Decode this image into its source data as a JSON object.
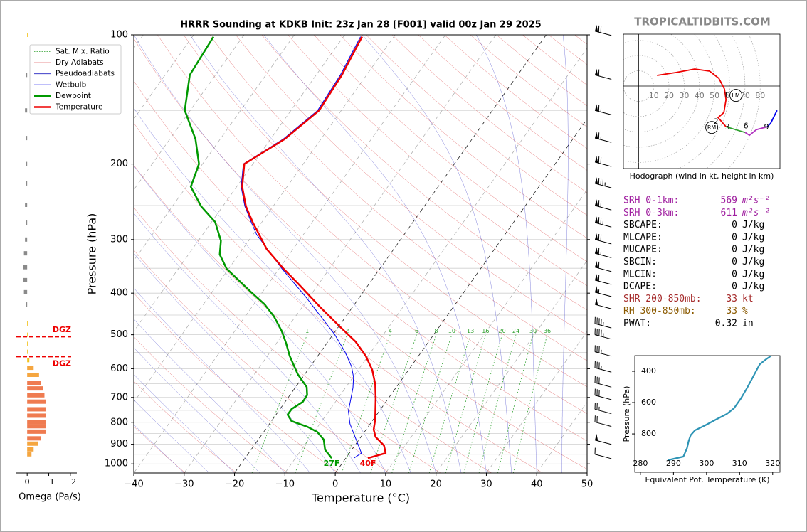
{
  "site": "TROPICALTIDBITS.COM",
  "chart_data": [
    {
      "type": "skewt",
      "title": "HRRR Sounding at KDKB Init: 23z Jan 28 [F001] valid 00z Jan 29 2025",
      "x_label": "Temperature (°C)",
      "y_label": "Pressure (hPa)",
      "xlim": [
        -40,
        50
      ],
      "xticks": [
        {
          "value": -40,
          "label": "−40"
        },
        {
          "value": -30,
          "label": "−30"
        },
        {
          "value": -20,
          "label": "−20"
        },
        {
          "value": -10,
          "label": "−10"
        },
        0,
        10,
        20,
        30,
        40,
        50
      ],
      "ylim": [
        1050,
        100
      ],
      "log_scale": true,
      "yticks": [
        100,
        200,
        300,
        400,
        500,
        600,
        700,
        800,
        900,
        1000
      ],
      "minor_yticks": [
        150,
        250,
        350,
        450,
        550,
        650,
        750,
        850,
        950
      ],
      "legend": "upper left",
      "reference_lines": [
        {
          "name": "Sat. Mix. Ratio",
          "color": "#2ca02c"
        },
        {
          "name": "Dry Adiabats",
          "color": "#d62728"
        },
        {
          "name": "Pseudoadiabats",
          "color": "#2020c0"
        }
      ],
      "mixing_ratios": [
        1,
        2,
        4,
        6,
        8,
        10,
        13,
        16,
        20,
        24,
        30,
        36
      ],
      "series": [
        {
          "name": "Wetbulb",
          "color": "#0000ee",
          "linewidth": 1,
          "pressure": [
            970,
            944,
            875,
            807,
            754,
            665,
            628,
            593,
            549,
            499,
            445,
            409,
            351,
            292,
            274,
            251,
            226,
            200,
            175,
            150,
            124,
            101
          ],
          "values": [
            1.6,
            2.4,
            -0.7,
            -4.0,
            -6.1,
            -8.5,
            -9.9,
            -11.8,
            -15.1,
            -19.7,
            -26.0,
            -30.6,
            -39.4,
            -49.3,
            -52.0,
            -55.6,
            -59.1,
            -61.9,
            -57.5,
            -54.7,
            -55.2,
            -56.6
          ]
        },
        {
          "name": "Dewpoint",
          "color": "#009900",
          "linewidth": 2.5,
          "surface_label": "27F",
          "pressure": [
            970,
            927,
            878,
            842,
            820,
            795,
            768,
            745,
            717,
            691,
            662,
            618,
            560,
            523,
            490,
            454,
            425,
            397,
            351,
            325,
            302,
            273,
            251,
            226,
            200,
            175,
            150,
            124,
            101
          ],
          "values": [
            -2.8,
            -5.3,
            -7.0,
            -9.4,
            -12.0,
            -16.0,
            -17.7,
            -17.7,
            -16.5,
            -16.6,
            -17.8,
            -21.4,
            -25.6,
            -28.1,
            -30.7,
            -34.2,
            -37.8,
            -42.4,
            -50.4,
            -53.8,
            -55.5,
            -59.3,
            -64.3,
            -69.1,
            -70.7,
            -74.9,
            -81.1,
            -85.1,
            -85.8
          ]
        },
        {
          "name": "Temperature",
          "color": "#ee0000",
          "linewidth": 2.5,
          "surface_label": "40F",
          "pressure": [
            970,
            944,
            906,
            865,
            832,
            789,
            704,
            652,
            604,
            560,
            519,
            480,
            432,
            382,
            351,
            316,
            274,
            251,
            226,
            200,
            175,
            150,
            124,
            101
          ],
          "values": [
            4.4,
            7.2,
            5.8,
            2.9,
            1.5,
            0.4,
            -2.5,
            -4.6,
            -7.2,
            -10.5,
            -14.5,
            -19.6,
            -26.3,
            -33.8,
            -39.1,
            -45.2,
            -51.7,
            -55.4,
            -58.9,
            -61.7,
            -57.2,
            -54.4,
            -54.9,
            -56.3
          ]
        }
      ],
      "wind_barbs": {
        "pressure": [
          98,
          124,
          150,
          174,
          198,
          222,
          250,
          274,
          300,
          323,
          348,
          373,
          398,
          425,
          471,
          500,
          548,
          597,
          647,
          692,
          746,
          799,
          880,
          950
        ],
        "speed": [
          70,
          60,
          65,
          65,
          70,
          85,
          70,
          75,
          70,
          65,
          60,
          60,
          55,
          50,
          45,
          45,
          35,
          35,
          30,
          30,
          25,
          20,
          50,
          10
        ]
      }
    },
    {
      "type": "hodograph",
      "title": "Hodograph (wind in kt, height in km)",
      "xlim": [
        -10,
        93
      ],
      "ylim": [
        -54,
        34
      ],
      "rings": [
        10,
        20,
        30,
        40,
        50,
        60,
        70,
        80
      ],
      "series": [
        {
          "color": "#ee0000",
          "u": [
            12.1,
            24.8,
            36.9,
            46.7,
            52.8,
            56.5,
            57.5,
            56.1,
            52.3,
            57.5
          ],
          "v": [
            7.0,
            8.9,
            11.2,
            9.8,
            5.1,
            -1.9,
            -8.9,
            -17.3,
            -20.6,
            -26.6
          ]
        },
        {
          "color": "#2ca02c",
          "u": [
            57.5,
            70.1
          ],
          "v": [
            -26.6,
            -30.4
          ]
        },
        {
          "color": "#b030c0",
          "u": [
            70.1,
            72.9,
            77.6,
            84.6
          ],
          "v": [
            -30.4,
            -32.2,
            -28.5,
            -26.6
          ]
        },
        {
          "color": "#0000ee",
          "u": [
            84.6,
            86.9,
            91.1
          ],
          "v": [
            -26.6,
            -24.3,
            -15.9
          ]
        }
      ],
      "height_labels": [
        {
          "label": "1",
          "u": 57.5,
          "v": -6.1
        },
        {
          "label": "2",
          "u": 50.9,
          "v": -23.4
        },
        {
          "label": "3",
          "u": 58.4,
          "v": -27.1
        },
        {
          "label": "6",
          "u": 70.6,
          "v": -26.2
        },
        {
          "label": "9",
          "u": 84.1,
          "v": -27.1
        }
      ],
      "storm_motion": [
        {
          "label": "RM",
          "u": 48.1,
          "v": -27.1
        },
        {
          "label": "LM",
          "u": 64.0,
          "v": -6.1
        }
      ]
    },
    {
      "type": "line",
      "x_label": "Equivalent Pot. Temperature (K)",
      "y_label": "Pressure (hPa)",
      "color": "#2e94b5",
      "xlim": [
        278.3,
        322.2
      ],
      "xticks": [
        280,
        290,
        300,
        310,
        320
      ],
      "ylim": [
        1045,
        300
      ],
      "yticks": [
        400,
        600,
        800
      ],
      "x": [
        288.3,
        293.0,
        294.1,
        294.6,
        295.2,
        296.5,
        299.6,
        302.8,
        306.1,
        308.3,
        310.4,
        312.2,
        313.7,
        315.4,
        316.1,
        318.0,
        319.6
      ],
      "y": [
        968,
        945,
        891,
        845,
        809,
        777,
        745,
        709,
        673,
        636,
        573,
        509,
        450,
        382,
        355,
        323,
        300
      ]
    },
    {
      "type": "barh",
      "x_label": "Omega (Pa/s)",
      "xlim": [
        0.5,
        -2.3
      ],
      "xticks": [
        0,
        {
          "value": -1,
          "label": "−1"
        },
        {
          "value": -2,
          "label": "−2"
        }
      ],
      "ylim": [
        1050,
        100
      ],
      "pressure": [
        100,
        124,
        150,
        174,
        200,
        222,
        249,
        274,
        300,
        323,
        348,
        373,
        398,
        425,
        471,
        500,
        525,
        548,
        573,
        597,
        620,
        647,
        667,
        692,
        716,
        746,
        772,
        799,
        817,
        841,
        872,
        897,
        925,
        950
      ],
      "values": [
        -0.05,
        0.05,
        0.1,
        0.05,
        0.05,
        0.05,
        0.1,
        0.05,
        0.1,
        0.15,
        0.2,
        0.2,
        0.15,
        0.05,
        -0.02,
        -0.03,
        -0.03,
        -0.05,
        -0.1,
        -0.3,
        -0.55,
        -0.65,
        -0.75,
        -0.8,
        -0.85,
        -0.85,
        -0.85,
        -0.85,
        -0.85,
        -0.85,
        -0.65,
        -0.5,
        -0.3,
        -0.2
      ],
      "annotations": [
        {
          "text": "DGZ",
          "pressure": 505
        },
        {
          "text": "DGZ",
          "pressure": 562
        }
      ]
    }
  ],
  "indices": [
    {
      "label": "SRH 0-1km:",
      "value": 569,
      "unit": "m²s⁻²",
      "color": "#a020a0"
    },
    {
      "label": "SRH 0-3km:",
      "value": 611,
      "unit": "m²s⁻²",
      "color": "#a020a0"
    },
    {
      "label": "SBCAPE:",
      "value": 0,
      "unit": "J/kg",
      "color": "#000000"
    },
    {
      "label": "MLCAPE:",
      "value": 0,
      "unit": "J/kg",
      "color": "#000000"
    },
    {
      "label": "MUCAPE:",
      "value": 0,
      "unit": "J/kg",
      "color": "#000000"
    },
    {
      "label": "SBCIN:",
      "value": 0,
      "unit": "J/kg",
      "color": "#000000"
    },
    {
      "label": "MLCIN:",
      "value": 0,
      "unit": "J/kg",
      "color": "#000000"
    },
    {
      "label": "DCAPE:",
      "value": 0,
      "unit": "J/kg",
      "color": "#000000"
    },
    {
      "label": "SHR 200-850mb:",
      "value": 33,
      "unit": "kt",
      "color": "#a52a2a"
    },
    {
      "label": "RH 300-850mb:",
      "value": 33,
      "unit": "%",
      "color": "#8b5a00"
    },
    {
      "label": "PWAT:",
      "value": 0.32,
      "unit": "in",
      "color": "#000000"
    }
  ]
}
